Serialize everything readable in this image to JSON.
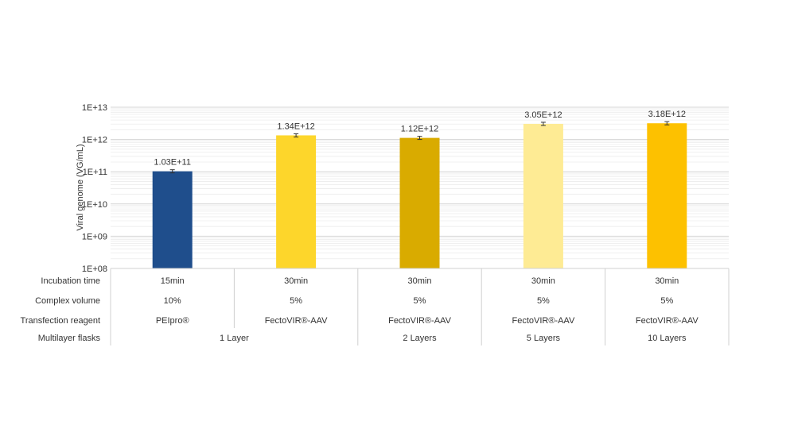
{
  "chart_data": {
    "type": "bar",
    "ylabel": "Viral genome (VG/mL)",
    "yscale": "log",
    "ylim": [
      100000000,
      10000000000000
    ],
    "ytick_labels": [
      "1E+08",
      "1E+09",
      "1E+10",
      "1E+11",
      "1E+12",
      "1E+13"
    ],
    "grid": true,
    "values": [
      103000000000,
      1340000000000,
      1120000000000,
      3050000000000,
      3180000000000
    ],
    "data_labels": [
      "1.03E+11",
      "1.34E+12",
      "1.12E+12",
      "3.05E+12",
      "3.18E+12"
    ],
    "bar_colors": [
      "#1f4e8c",
      "#fdd62b",
      "#d9ab00",
      "#feeb94",
      "#fdc100"
    ],
    "table": {
      "row_labels": [
        "Incubation time",
        "Complex volume",
        "Transfection reagent",
        "Multilayer flasks"
      ],
      "incubation_time": [
        "15min",
        "30min",
        "30min",
        "30min",
        "30min"
      ],
      "complex_volume": [
        "10%",
        "5%",
        "5%",
        "5%",
        "5%"
      ],
      "transfection_reagent": [
        "PEIpro®",
        "FectoVIR®-AAV",
        "FectoVIR®-AAV",
        "FectoVIR®-AAV",
        "FectoVIR®-AAV"
      ],
      "multilayer_flasks": [
        {
          "label": "1 Layer",
          "span": 2
        },
        {
          "label": "2 Layers",
          "span": 1
        },
        {
          "label": "5 Layers",
          "span": 1
        },
        {
          "label": "10 Layers",
          "span": 1
        }
      ]
    }
  }
}
